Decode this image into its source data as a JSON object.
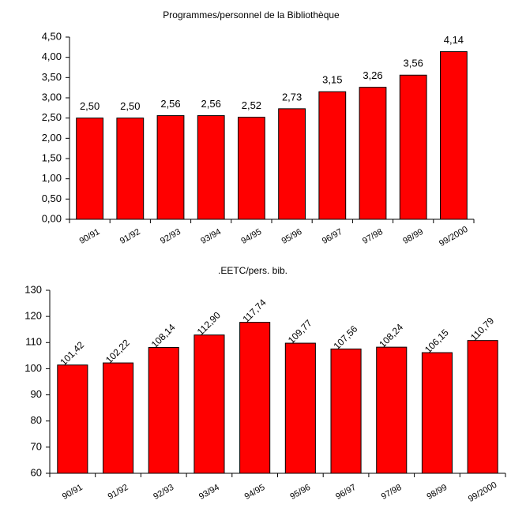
{
  "chart_data": [
    {
      "type": "bar",
      "title": "Programmes/personnel de la Bibliothèque",
      "categories": [
        "90/91",
        "91/92",
        "92/93",
        "93/94",
        "94/95",
        "95/96",
        "96/97",
        "97/98",
        "98/99",
        "99/2000"
      ],
      "values": [
        2.5,
        2.5,
        2.56,
        2.56,
        2.52,
        2.73,
        3.15,
        3.26,
        3.56,
        4.14
      ],
      "value_labels": [
        "2,50",
        "2,50",
        "2,56",
        "2,56",
        "2,52",
        "2,73",
        "3,15",
        "3,26",
        "3,56",
        "4,14"
      ],
      "color": "#ff0000",
      "ylim": [
        0,
        4.5
      ],
      "yticks": [
        {
          "value": 0,
          "label": "0,00"
        },
        {
          "value": 0.5,
          "label": "0,50"
        },
        {
          "value": 1,
          "label": "1,00"
        },
        {
          "value": 1.5,
          "label": "1,50"
        },
        {
          "value": 2,
          "label": "2,00"
        },
        {
          "value": 2.5,
          "label": "2,50"
        },
        {
          "value": 3,
          "label": "3,00"
        },
        {
          "value": 3.5,
          "label": "3,50"
        },
        {
          "value": 4,
          "label": "4,00"
        },
        {
          "value": 4.5,
          "label": "4,50"
        }
      ],
      "grid": false
    },
    {
      "type": "bar",
      "title": ".EETC/pers. bib.",
      "categories": [
        "90/91",
        "91/92",
        "92/93",
        "93/94",
        "94/95",
        "95/96",
        "96/97",
        "97/98",
        "98/99",
        "99/2000"
      ],
      "values": [
        101.42,
        102.22,
        108.14,
        112.9,
        117.74,
        109.77,
        107.56,
        108.24,
        106.15,
        110.79
      ],
      "value_labels": [
        "101,42",
        "102,22",
        "108,14",
        "112,90",
        "117,74",
        "109,77",
        "107,56",
        "108,24",
        "106,15",
        "110,79"
      ],
      "color": "#ff0000",
      "ylim": [
        60,
        130
      ],
      "yticks": [
        60,
        70,
        80,
        90,
        100,
        110,
        120,
        130
      ],
      "grid": false
    }
  ]
}
